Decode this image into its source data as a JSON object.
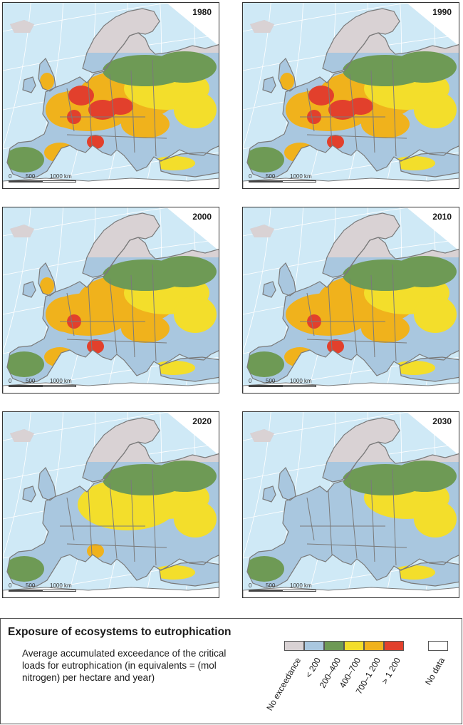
{
  "panels": [
    {
      "year": "1980",
      "level": 5
    },
    {
      "year": "1990",
      "level": 5
    },
    {
      "year": "2000",
      "level": 4
    },
    {
      "year": "2010",
      "level": 3
    },
    {
      "year": "2020",
      "level": 2
    },
    {
      "year": "2030",
      "level": 1
    }
  ],
  "scale": {
    "l0": "0",
    "l500": "500",
    "l1000": "1000 km"
  },
  "legend": {
    "title": "Exposure of ecosystems to eutrophication",
    "description": "Average accumulated exceedance of the critical loads for eutrophication (in equivalents = (mol nitrogen) per hectare and year)",
    "classes": [
      {
        "label": "No exceedance",
        "color": "#d9d2d4"
      },
      {
        "label": "< 200",
        "color": "#a9c7df"
      },
      {
        "label": "200–400",
        "color": "#6e9a55"
      },
      {
        "label": "400–700",
        "color": "#f3de2b"
      },
      {
        "label": "700–1 200",
        "color": "#f0b21c"
      },
      {
        "label": "> 1 200",
        "color": "#e2402c"
      }
    ],
    "nodata": {
      "label": "No data",
      "color": "#ffffff"
    }
  },
  "colors": {
    "sea": "#cfe9f6",
    "outside": "#ffffff",
    "land_bg": "#d9d2d4",
    "border": "#7a7a7a",
    "grid": "#ffffff"
  }
}
